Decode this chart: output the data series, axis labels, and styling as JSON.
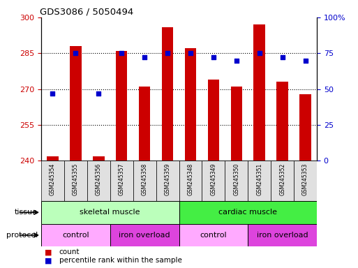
{
  "title": "GDS3086 / 5050494",
  "samples": [
    "GSM245354",
    "GSM245355",
    "GSM245356",
    "GSM245357",
    "GSM245358",
    "GSM245359",
    "GSM245348",
    "GSM245349",
    "GSM245350",
    "GSM245351",
    "GSM245352",
    "GSM245353"
  ],
  "counts": [
    242,
    288,
    242,
    286,
    271,
    296,
    287,
    274,
    271,
    297,
    273,
    268
  ],
  "percentiles": [
    47,
    75,
    47,
    75,
    72,
    75,
    75,
    72,
    70,
    75,
    72,
    70
  ],
  "ylim_left": [
    240,
    300
  ],
  "ylim_right": [
    0,
    100
  ],
  "yticks_left": [
    240,
    255,
    270,
    285,
    300
  ],
  "yticks_right": [
    0,
    25,
    50,
    75,
    100
  ],
  "bar_color": "#cc0000",
  "dot_color": "#0000cc",
  "tissue_groups": [
    {
      "label": "skeletal muscle",
      "start": 0,
      "end": 6,
      "color": "#bbffbb"
    },
    {
      "label": "cardiac muscle",
      "start": 6,
      "end": 12,
      "color": "#44ee44"
    }
  ],
  "protocol_groups": [
    {
      "label": "control",
      "start": 0,
      "end": 3,
      "color": "#ffaaff"
    },
    {
      "label": "iron overload",
      "start": 3,
      "end": 6,
      "color": "#dd44dd"
    },
    {
      "label": "control",
      "start": 6,
      "end": 9,
      "color": "#ffaaff"
    },
    {
      "label": "iron overload",
      "start": 9,
      "end": 12,
      "color": "#dd44dd"
    }
  ],
  "legend_count_label": "count",
  "legend_pct_label": "percentile rank within the sample",
  "left_axis_color": "#cc0000",
  "right_axis_color": "#0000cc",
  "bar_width": 0.5,
  "separator_x": 5.5,
  "n_samples": 12,
  "xlim": [
    -0.5,
    11.5
  ]
}
